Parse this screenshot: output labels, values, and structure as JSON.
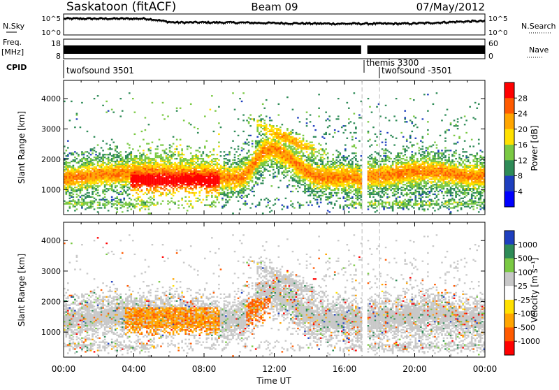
{
  "header": {
    "station": "Saskatoon (fitACF)",
    "beam": "Beam 09",
    "date": "07/May/2012"
  },
  "noise_panel": {
    "left_label": "N.Sky",
    "right_label": "N.Search",
    "left_ticks": [
      "10^5",
      "10^0"
    ],
    "right_ticks": [
      "10^5",
      "10^0"
    ]
  },
  "freq_panel": {
    "left_label": "Freq.",
    "left_units": "[MHz]",
    "right_label": "Nave",
    "left_ticks": [
      "18",
      "8"
    ],
    "right_ticks": [
      "60",
      "0"
    ]
  },
  "cpid": {
    "label": "CPID",
    "segments": [
      {
        "name": "twofsound 3501",
        "start_hour": 0.0
      },
      {
        "name": "themis 3300",
        "start_hour": 17.0
      },
      {
        "name": "twofsound -3501",
        "start_hour": 18.0
      }
    ]
  },
  "chart_data": [
    {
      "type": "heatmap",
      "panel": "power",
      "xlabel": "",
      "ylabel": "Slant Range [km]",
      "x_ticks": [
        "00:00",
        "04:00",
        "08:00",
        "12:00",
        "16:00",
        "20:00",
        "00:00"
      ],
      "x_tick_hours": [
        0,
        4,
        8,
        12,
        16,
        20,
        24
      ],
      "xlim": [
        0,
        24
      ],
      "y_ticks": [
        1000,
        2000,
        3000,
        4000
      ],
      "ylim": [
        180,
        4600
      ],
      "colorbar_label": "Power [dB]",
      "colorbar_ticks": [
        "28",
        "24",
        "20",
        "16",
        "12",
        "8",
        "4"
      ],
      "colorbar_colors": [
        "#ff0000",
        "#ff5a00",
        "#ffa500",
        "#ffe000",
        "#7ac943",
        "#2e8b57",
        "#1e3fbf",
        "#0000ff"
      ],
      "features": [
        {
          "start_hour": 0.0,
          "end_hour": 17.0,
          "range_km": [
            900,
            2200
          ],
          "power_db": 20
        },
        {
          "start_hour": 4.0,
          "end_hour": 8.5,
          "range_km": [
            900,
            1600
          ],
          "power_db": 28
        },
        {
          "start_hour": 10.5,
          "end_hour": 12.5,
          "range_km": [
            2500,
            3200
          ],
          "power_db": 20
        },
        {
          "start_hour": 17.2,
          "end_hour": 24.0,
          "range_km": [
            1100,
            2100
          ],
          "power_db": 24
        }
      ]
    },
    {
      "type": "heatmap",
      "panel": "velocity",
      "xlabel": "Time UT",
      "ylabel": "Slant Range [km]",
      "x_ticks": [
        "00:00",
        "04:00",
        "08:00",
        "12:00",
        "16:00",
        "20:00",
        "00:00"
      ],
      "x_tick_hours": [
        0,
        4,
        8,
        12,
        16,
        20,
        24
      ],
      "xlim": [
        0,
        24
      ],
      "y_ticks": [
        1000,
        2000,
        3000,
        4000
      ],
      "ylim": [
        180,
        4600
      ],
      "colorbar_label": "Velocity [m s⁻¹]",
      "colorbar_ticks": [
        "1000",
        "500",
        "100",
        "25",
        "-25",
        "-100",
        "-500",
        "-1000"
      ],
      "colorbar_colors": [
        "#1e3fbf",
        "#2e8b57",
        "#7ac943",
        "#c8c8c8",
        "#ffffff",
        "#ffe000",
        "#ffa500",
        "#ff5a00",
        "#ff0000"
      ],
      "features": [
        {
          "start_hour": 0.0,
          "end_hour": 24.0,
          "range_km": [
            1100,
            2300
          ],
          "velocity_ms": 0
        },
        {
          "start_hour": 3.5,
          "end_hour": 8.5,
          "range_km": [
            1000,
            1700
          ],
          "velocity_ms": -300
        },
        {
          "start_hour": 10.5,
          "end_hour": 11.5,
          "range_km": [
            1200,
            2000
          ],
          "velocity_ms": -500
        }
      ]
    }
  ]
}
